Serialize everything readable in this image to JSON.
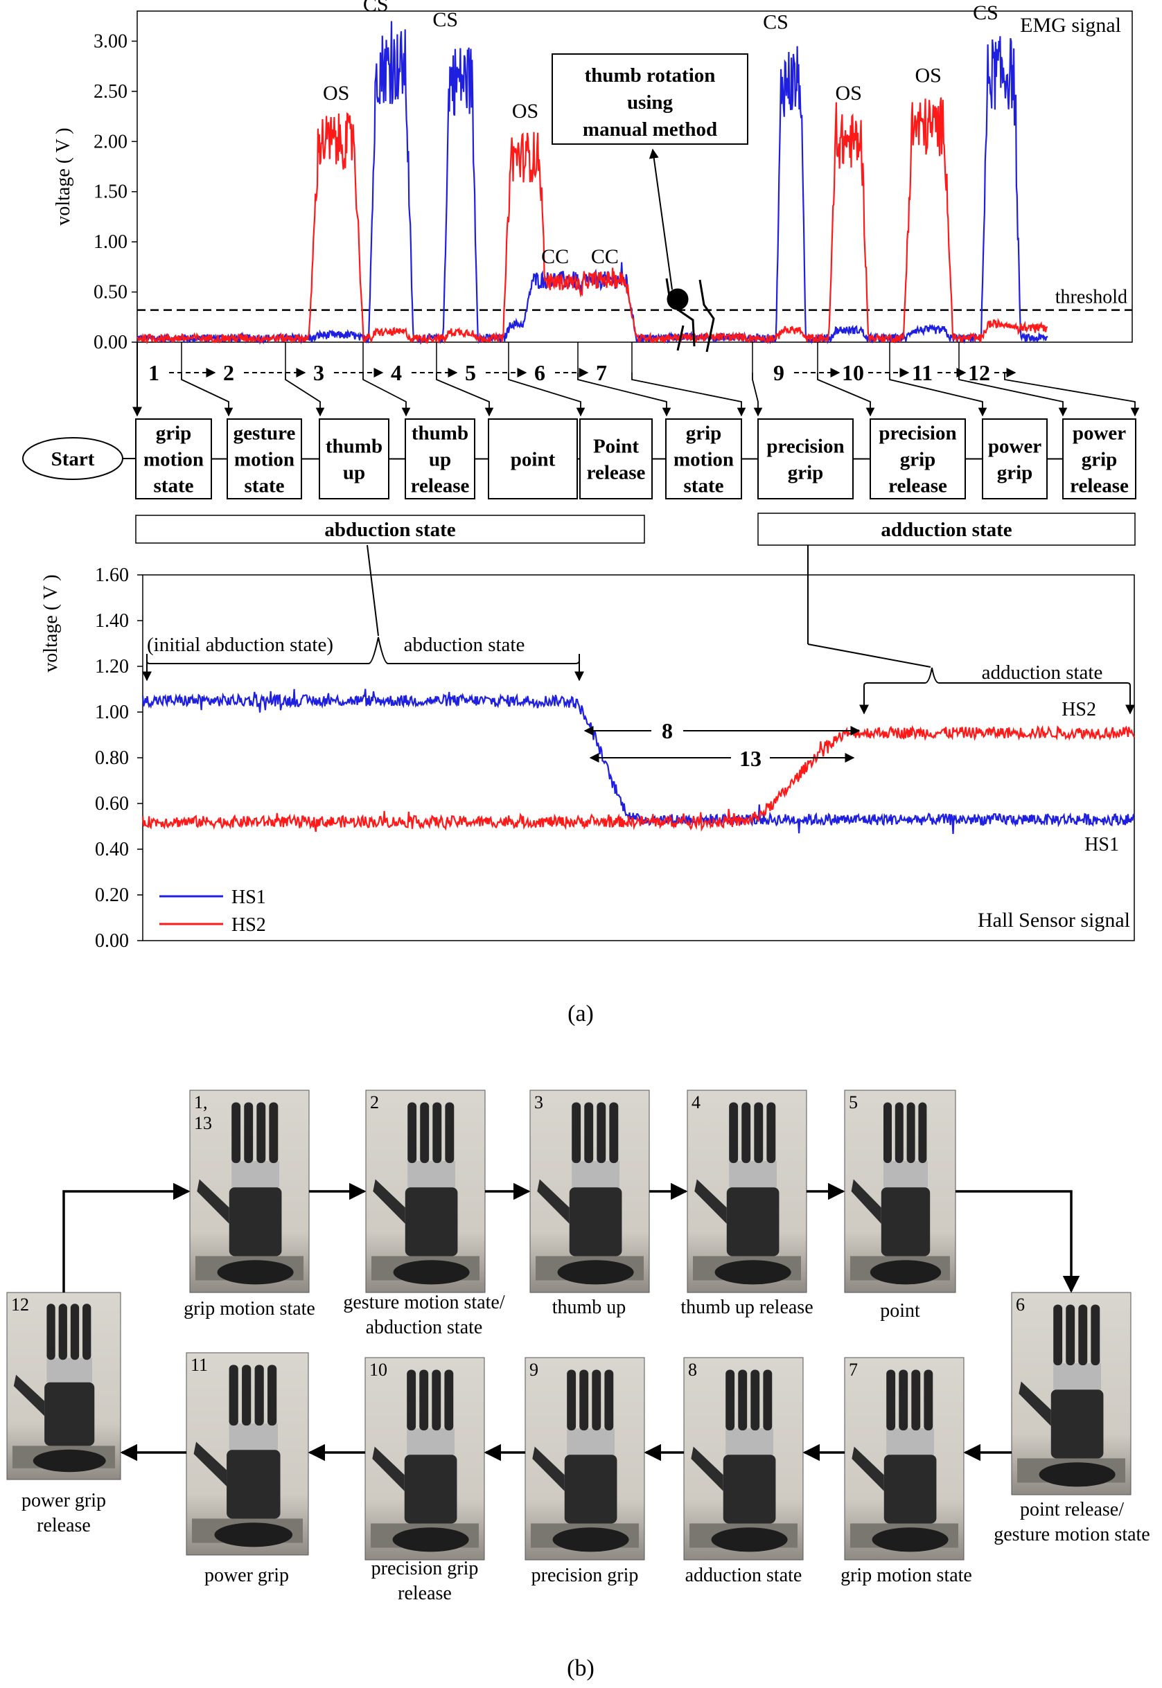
{
  "panel_a_label": "(a)",
  "panel_b_label": "(b)",
  "chart_data": [
    {
      "type": "line",
      "title": "EMG signal",
      "ylabel": "voltage ( V )",
      "ylim": [
        0,
        3.3
      ],
      "yticks": [
        "0.00",
        "0.50",
        "1.00",
        "1.50",
        "2.00",
        "2.50",
        "3.00"
      ],
      "threshold": {
        "label": "threshold",
        "value": 0.32
      },
      "series": [
        {
          "name": "blue",
          "color": "#1f1fe0"
        },
        {
          "name": "red",
          "color": "#ff1a1a"
        }
      ],
      "bursts": [
        {
          "label": "CC",
          "center": 0.42,
          "width": 0.07,
          "red": 0.6,
          "blue": 0.62
        },
        {
          "label": "OS",
          "center": 0.2,
          "width": 0.055,
          "red": 2.0,
          "blue": 0.07
        },
        {
          "label": "CS",
          "center": 0.255,
          "width": 0.045,
          "red": 0.1,
          "blue": 2.75
        },
        {
          "label": "CS",
          "center": 0.325,
          "width": 0.035,
          "red": 0.1,
          "blue": 2.62
        },
        {
          "label": "OS",
          "center": 0.39,
          "width": 0.045,
          "red": 1.85,
          "blue": 0.18
        },
        {
          "label": "CC",
          "center": 0.47,
          "width": 0.065,
          "red": 0.62,
          "blue": 0.62
        },
        {
          "label": "CS",
          "center": 0.657,
          "width": 0.03,
          "red": 0.12,
          "blue": 2.6
        },
        {
          "label": "OS",
          "center": 0.715,
          "width": 0.04,
          "red": 2.0,
          "blue": 0.12
        },
        {
          "label": "OS",
          "center": 0.795,
          "width": 0.05,
          "red": 2.15,
          "blue": 0.12
        },
        {
          "label": "CS",
          "center": 0.868,
          "width": 0.04,
          "red": 0.18,
          "blue": 2.68
        }
      ],
      "annotation_box": [
        "thumb rotation",
        "using",
        "manual method"
      ]
    },
    {
      "type": "line",
      "title": "Hall Sensor signal",
      "ylabel": "voltage ( V )",
      "ylim": [
        0,
        1.6
      ],
      "yticks": [
        "0.00",
        "0.20",
        "0.40",
        "0.60",
        "0.80",
        "1.00",
        "1.20",
        "1.40",
        "1.60"
      ],
      "series": [
        {
          "name": "HS1",
          "color": "#1f1fe0",
          "start": 1.05,
          "end": 0.53,
          "transition": [
            0.43,
            0.5
          ]
        },
        {
          "name": "HS2",
          "color": "#ff1a1a",
          "start": 0.52,
          "end": 0.91,
          "transition": [
            0.6,
            0.72
          ]
        }
      ],
      "annotations": {
        "initial": "(initial abduction state)",
        "abduction": "abduction state",
        "adduction": "adduction state",
        "hs2": "HS2",
        "hs1": "HS1",
        "arrow_8": "8",
        "arrow_13": "13"
      }
    }
  ],
  "sequence": {
    "start": "Start",
    "numbers": [
      "1",
      "2",
      "3",
      "4",
      "5",
      "6",
      "7",
      "9",
      "10",
      "11",
      "12"
    ],
    "states": [
      [
        "grip",
        "motion",
        "state"
      ],
      [
        "gesture",
        "motion",
        "state"
      ],
      [
        "thumb",
        "up"
      ],
      [
        "thumb",
        "up",
        "release"
      ],
      [
        "point"
      ],
      [
        "Point",
        "release"
      ],
      [
        "grip",
        "motion",
        "state"
      ],
      [
        "precision",
        "grip"
      ],
      [
        "precision",
        "grip",
        "release"
      ],
      [
        "power",
        "grip"
      ],
      [
        "power",
        "grip",
        "release"
      ]
    ],
    "abduction_bar": "abduction state",
    "adduction_bar": "adduction state"
  },
  "photos": [
    {
      "num": "1,",
      "num2": "13",
      "caption": [
        "grip motion state"
      ]
    },
    {
      "num": "2",
      "caption": [
        "gesture motion state/",
        "abduction state"
      ]
    },
    {
      "num": "3",
      "caption": [
        "thumb up"
      ]
    },
    {
      "num": "4",
      "caption": [
        "thumb up release"
      ]
    },
    {
      "num": "5",
      "caption": [
        "point"
      ]
    },
    {
      "num": "6",
      "caption": [
        "point release/",
        "gesture motion state"
      ]
    },
    {
      "num": "7",
      "caption": [
        "grip motion state"
      ]
    },
    {
      "num": "8",
      "caption": [
        "adduction state"
      ]
    },
    {
      "num": "9",
      "caption": [
        "precision grip"
      ]
    },
    {
      "num": "10",
      "caption": [
        "precision grip",
        "release"
      ]
    },
    {
      "num": "11",
      "caption": [
        "power grip"
      ]
    },
    {
      "num": "12",
      "caption": [
        "power grip",
        "release"
      ]
    }
  ]
}
